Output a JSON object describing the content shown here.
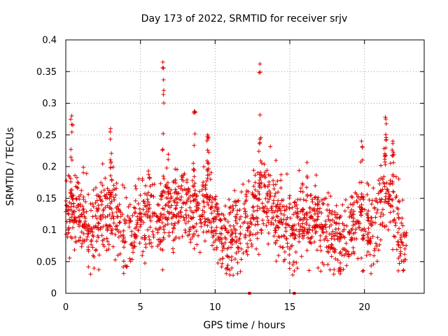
{
  "chart_data": {
    "type": "scatter",
    "title": "Day 173 of 2022, SRMTID for receiver srjv",
    "xlabel": "GPS time / hours",
    "ylabel": "SRMTID / TECUs",
    "xlim": [
      0,
      24
    ],
    "ylim": [
      0,
      0.4
    ],
    "x_ticks": [
      0,
      5,
      10,
      15,
      20
    ],
    "x_tick_labels": [
      "0",
      "5",
      "10",
      "15",
      "20"
    ],
    "y_ticks": [
      0,
      0.05,
      0.1,
      0.15,
      0.2,
      0.25,
      0.3,
      0.35,
      0.4
    ],
    "y_tick_labels": [
      "0",
      "0.05",
      "0.1",
      "0.15",
      "0.2",
      "0.25",
      "0.3",
      "0.35",
      "0.4"
    ],
    "grid": true,
    "marker": "+",
    "series_color": "#e00000",
    "profile": {
      "x": [
        0,
        0.5,
        1,
        1.5,
        2,
        2.5,
        3,
        3.5,
        4,
        4.5,
        5,
        5.5,
        6,
        6.5,
        7,
        7.5,
        8,
        8.5,
        9,
        9.5,
        10,
        10.5,
        11,
        11.5,
        12,
        12.5,
        13,
        13.5,
        14,
        14.5,
        15,
        15.5,
        16,
        16.5,
        17,
        17.5,
        18,
        18.5,
        19,
        19.5,
        20,
        20.5,
        21,
        21.5,
        22,
        22.5,
        22.8
      ],
      "y": [
        0.14,
        0.13,
        0.12,
        0.11,
        0.11,
        0.12,
        0.13,
        0.12,
        0.09,
        0.1,
        0.12,
        0.13,
        0.12,
        0.13,
        0.14,
        0.14,
        0.14,
        0.13,
        0.14,
        0.14,
        0.1,
        0.1,
        0.09,
        0.1,
        0.11,
        0.13,
        0.15,
        0.15,
        0.13,
        0.11,
        0.1,
        0.11,
        0.12,
        0.11,
        0.1,
        0.1,
        0.09,
        0.08,
        0.1,
        0.12,
        0.11,
        0.1,
        0.14,
        0.16,
        0.13,
        0.08,
        0.07
      ]
    },
    "peaks": [
      {
        "x": 0.4,
        "y": 0.28
      },
      {
        "x": 3.0,
        "y": 0.26
      },
      {
        "x": 6.5,
        "y": 0.365
      },
      {
        "x": 8.6,
        "y": 0.287
      },
      {
        "x": 9.5,
        "y": 0.25
      },
      {
        "x": 13.0,
        "y": 0.362
      },
      {
        "x": 19.8,
        "y": 0.24
      },
      {
        "x": 21.4,
        "y": 0.278
      },
      {
        "x": 21.9,
        "y": 0.24
      }
    ],
    "zero_points": [
      {
        "x": 12.3,
        "y": 0
      },
      {
        "x": 15.3,
        "y": 0
      }
    ],
    "x_end": 22.8
  }
}
